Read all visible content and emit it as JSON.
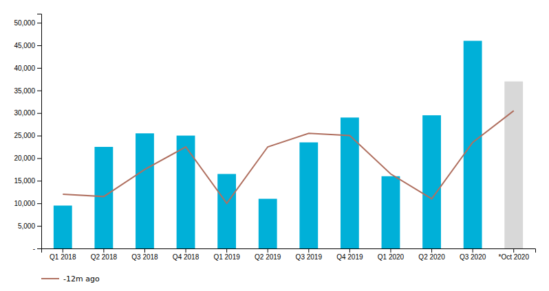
{
  "chart_data": {
    "type": "bar",
    "categories": [
      "Q1 2018",
      "Q2 2018",
      "Q3 2018",
      "Q4 2018",
      "Q1 2019",
      "Q2 2019",
      "Q3 2019",
      "Q4 2019",
      "Q1 2020",
      "Q2 2020",
      "Q3 2020",
      "*Oct 2020"
    ],
    "series": [
      {
        "type": "bar",
        "colors": [
          "#00b0d8",
          "#00b0d8",
          "#00b0d8",
          "#00b0d8",
          "#00b0d8",
          "#00b0d8",
          "#00b0d8",
          "#00b0d8",
          "#00b0d8",
          "#00b0d8",
          "#00b0d8",
          "#d8d8d8"
        ],
        "values": [
          9500,
          22500,
          25500,
          25000,
          16500,
          11000,
          23500,
          29000,
          16000,
          29500,
          46000,
          37000
        ]
      },
      {
        "type": "line",
        "name": "-12m ago",
        "color": "#b07060",
        "values": [
          12000,
          11500,
          17500,
          22500,
          10000,
          22500,
          25500,
          25000,
          16500,
          11000,
          23500,
          30500
        ]
      }
    ],
    "ylim": [
      0,
      52000
    ],
    "yticks": [
      {
        "value": 0,
        "label": "-"
      },
      {
        "value": 5000,
        "label": "5,000"
      },
      {
        "value": 10000,
        "label": "10,000"
      },
      {
        "value": 15000,
        "label": "15,000"
      },
      {
        "value": 20000,
        "label": "20,000"
      },
      {
        "value": 25000,
        "label": "25,000"
      },
      {
        "value": 30000,
        "label": "30,000"
      },
      {
        "value": 35000,
        "label": "35,000"
      },
      {
        "value": 40000,
        "label": "40,000"
      },
      {
        "value": 45000,
        "label": "45,000"
      },
      {
        "value": 50000,
        "label": "50,000"
      }
    ],
    "grid": false,
    "legend": "lower left"
  }
}
